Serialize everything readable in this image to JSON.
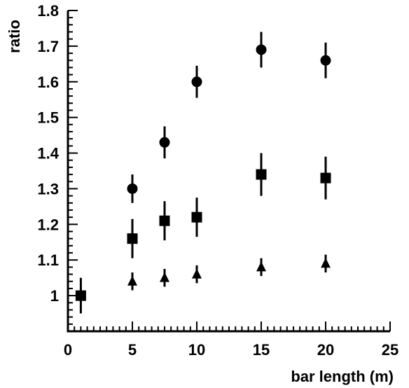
{
  "chart_data": {
    "type": "scatter",
    "title": "",
    "xlabel": "bar length (m)",
    "ylabel": "ratio",
    "xlim": [
      0,
      25
    ],
    "ylim": [
      0.9,
      1.8
    ],
    "grid": false,
    "x_ticks": [
      "0",
      "5",
      "10",
      "15",
      "20",
      "25"
    ],
    "y_ticks": [
      "1",
      "1.1",
      "1.2",
      "1.3",
      "1.4",
      "1.5",
      "1.6",
      "1.7",
      "1.8"
    ],
    "series": [
      {
        "marker": "circle",
        "points": [
          {
            "x": 5,
            "y": 1.3,
            "err": 0.04
          },
          {
            "x": 7.5,
            "y": 1.43,
            "err": 0.045
          },
          {
            "x": 10,
            "y": 1.6,
            "err": 0.045
          },
          {
            "x": 15,
            "y": 1.69,
            "err": 0.05
          },
          {
            "x": 20,
            "y": 1.66,
            "err": 0.05
          }
        ]
      },
      {
        "marker": "square",
        "points": [
          {
            "x": 1,
            "y": 1.0,
            "err": 0.05
          },
          {
            "x": 5,
            "y": 1.16,
            "err": 0.055
          },
          {
            "x": 7.5,
            "y": 1.21,
            "err": 0.055
          },
          {
            "x": 10,
            "y": 1.22,
            "err": 0.055
          },
          {
            "x": 15,
            "y": 1.34,
            "err": 0.06
          },
          {
            "x": 20,
            "y": 1.33,
            "err": 0.06
          }
        ]
      },
      {
        "marker": "triangle",
        "points": [
          {
            "x": 5,
            "y": 1.04,
            "err": 0.025
          },
          {
            "x": 7.5,
            "y": 1.05,
            "err": 0.025
          },
          {
            "x": 10,
            "y": 1.06,
            "err": 0.025
          },
          {
            "x": 15,
            "y": 1.08,
            "err": 0.025
          },
          {
            "x": 20,
            "y": 1.09,
            "err": 0.025
          }
        ]
      }
    ]
  }
}
